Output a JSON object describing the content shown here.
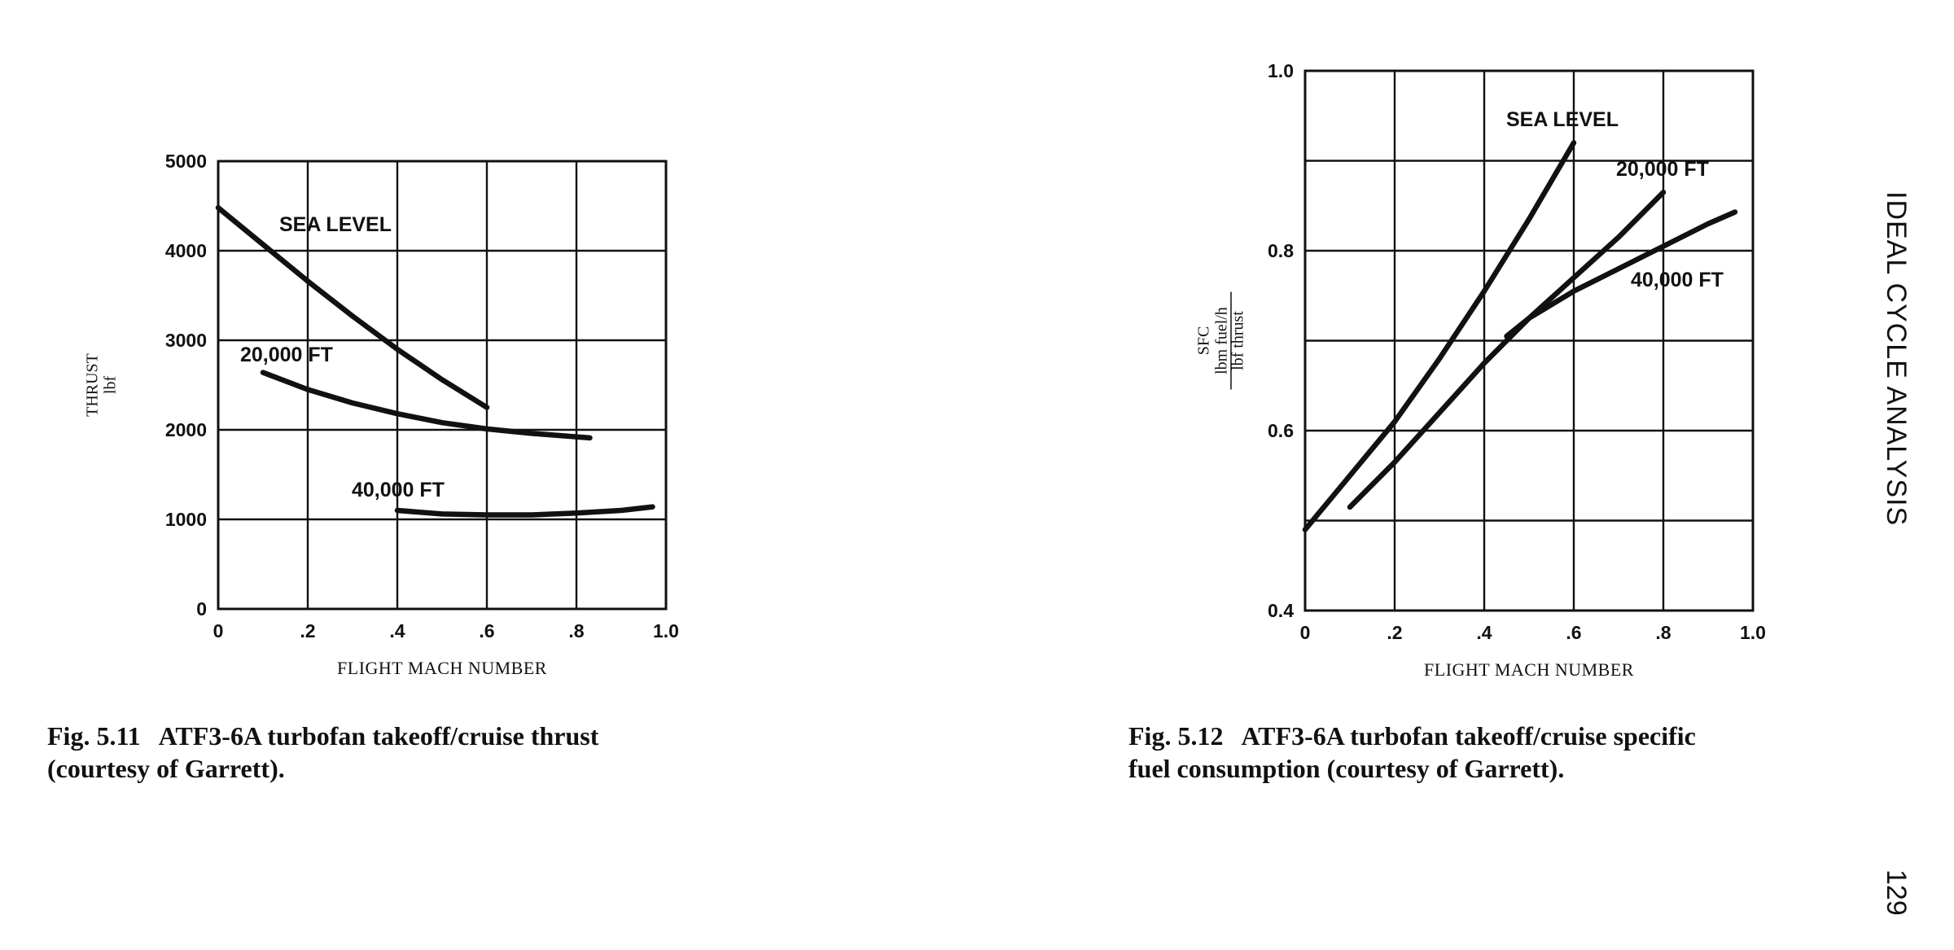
{
  "page": {
    "running_title": "IDEAL CYCLE ANALYSIS",
    "page_number": "129"
  },
  "captions": [
    {
      "number": "Fig. 5.11",
      "line1": "ATF3-6A turbofan takeoff/cruise thrust",
      "line2": "(courtesy of Garrett)."
    },
    {
      "number": "Fig. 5.12",
      "line1": "ATF3-6A turbofan takeoff/cruise specific",
      "line2": "fuel consumption (courtesy of Garrett)."
    }
  ],
  "chart_data": [
    {
      "type": "line",
      "title": "",
      "xlabel": "FLIGHT MACH NUMBER",
      "ylabel": [
        "THRUST",
        "lbf"
      ],
      "xlim": [
        0,
        1.0
      ],
      "ylim": [
        0,
        5000
      ],
      "xticks": [
        0,
        0.2,
        0.4,
        0.6,
        0.8,
        1.0
      ],
      "xtick_labels": [
        "0",
        ".2",
        ".4",
        ".6",
        ".8",
        "1.0"
      ],
      "yticks": [
        0,
        1000,
        2000,
        3000,
        4000,
        5000
      ],
      "ytick_labels": [
        "0",
        "1000",
        "2000",
        "3000",
        "4000",
        "5000"
      ],
      "grid": true,
      "series": [
        {
          "name": "SEA LEVEL",
          "x": [
            0,
            0.1,
            0.2,
            0.3,
            0.4,
            0.5,
            0.6
          ],
          "y": [
            4480,
            4070,
            3660,
            3270,
            2900,
            2560,
            2250
          ]
        },
        {
          "name": "20,000 FT",
          "x": [
            0.1,
            0.2,
            0.3,
            0.4,
            0.5,
            0.6,
            0.7,
            0.83
          ],
          "y": [
            2640,
            2450,
            2300,
            2180,
            2080,
            2010,
            1960,
            1910
          ]
        },
        {
          "name": "40,000 FT",
          "x": [
            0.4,
            0.5,
            0.6,
            0.7,
            0.8,
            0.9,
            0.97
          ],
          "y": [
            1100,
            1060,
            1050,
            1050,
            1070,
            1100,
            1140
          ]
        }
      ]
    },
    {
      "type": "line",
      "title": "",
      "xlabel": "FLIGHT MACH NUMBER",
      "ylabel": [
        "SFC",
        "lbm fuel/h",
        "lbf thrust"
      ],
      "xlim": [
        0,
        1.0
      ],
      "ylim": [
        0.4,
        1.0
      ],
      "xticks": [
        0,
        0.2,
        0.4,
        0.6,
        0.8,
        1.0
      ],
      "xtick_labels": [
        "0",
        ".2",
        ".4",
        ".6",
        ".8",
        "1.0"
      ],
      "yticks": [
        0.4,
        0.6,
        0.8,
        1.0
      ],
      "ytick_labels": [
        "0.4",
        "0.6",
        "0.8",
        "1.0"
      ],
      "ygrid": [
        0.4,
        0.5,
        0.6,
        0.7,
        0.8,
        0.9,
        1.0
      ],
      "grid": true,
      "series": [
        {
          "name": "SEA LEVEL",
          "x": [
            0,
            0.1,
            0.2,
            0.3,
            0.4,
            0.5,
            0.6
          ],
          "y": [
            0.49,
            0.55,
            0.61,
            0.68,
            0.755,
            0.835,
            0.92
          ]
        },
        {
          "name": "20,000 FT",
          "x": [
            0.1,
            0.2,
            0.3,
            0.4,
            0.5,
            0.6,
            0.7,
            0.8
          ],
          "y": [
            0.515,
            0.565,
            0.62,
            0.675,
            0.725,
            0.77,
            0.815,
            0.865
          ]
        },
        {
          "name": "40,000 FT",
          "x": [
            0.45,
            0.5,
            0.6,
            0.7,
            0.8,
            0.9,
            0.96
          ],
          "y": [
            0.705,
            0.725,
            0.755,
            0.78,
            0.805,
            0.83,
            0.843
          ]
        }
      ]
    }
  ]
}
